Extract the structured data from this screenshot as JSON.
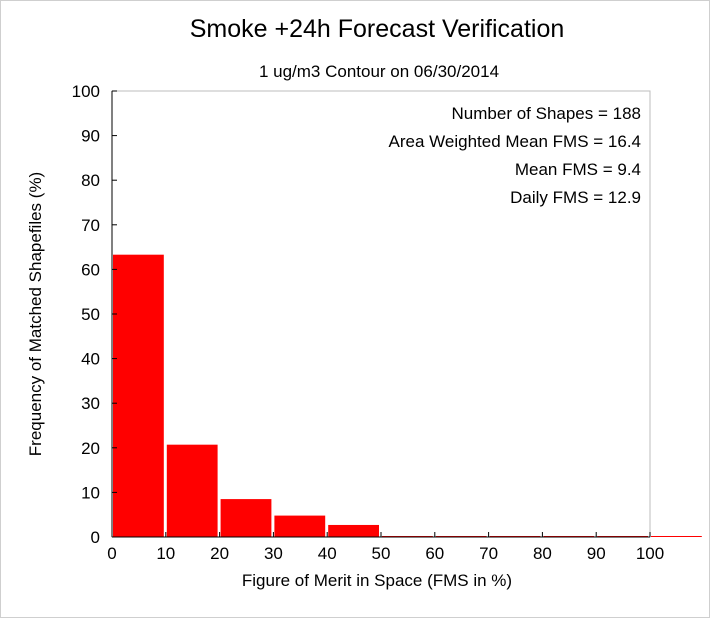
{
  "chart_data": {
    "type": "bar",
    "title": "Smoke +24h Forecast Verification",
    "subtitle": "1 ug/m3 Contour on 06/30/2014",
    "xlabel": "Figure of Merit in Space (FMS in %)",
    "ylabel": "Frequency of Matched Shapefiles (%)",
    "xlim": [
      0,
      100
    ],
    "ylim": [
      0,
      100
    ],
    "xticks": [
      0,
      10,
      20,
      30,
      40,
      50,
      60,
      70,
      80,
      90,
      100
    ],
    "yticks": [
      0,
      10,
      20,
      30,
      40,
      50,
      60,
      70,
      80,
      90,
      100
    ],
    "bin_width": 10,
    "bins": [
      {
        "start": 0,
        "end": 10,
        "value": 63.3
      },
      {
        "start": 10,
        "end": 20,
        "value": 20.7
      },
      {
        "start": 20,
        "end": 30,
        "value": 8.5
      },
      {
        "start": 30,
        "end": 40,
        "value": 4.8
      },
      {
        "start": 40,
        "end": 50,
        "value": 2.7
      },
      {
        "start": 50,
        "end": 60,
        "value": 0
      },
      {
        "start": 60,
        "end": 70,
        "value": 0
      },
      {
        "start": 70,
        "end": 80,
        "value": 0
      },
      {
        "start": 80,
        "end": 90,
        "value": 0
      },
      {
        "start": 90,
        "end": 100,
        "value": 0
      },
      {
        "start": 100,
        "end": 110,
        "value": 0
      }
    ],
    "bar_color": "#ff0000",
    "grid": false,
    "annotations": [
      "Number of Shapes = 188",
      "Area Weighted Mean FMS = 16.4",
      "Mean FMS = 9.4",
      "Daily FMS = 12.9"
    ]
  }
}
